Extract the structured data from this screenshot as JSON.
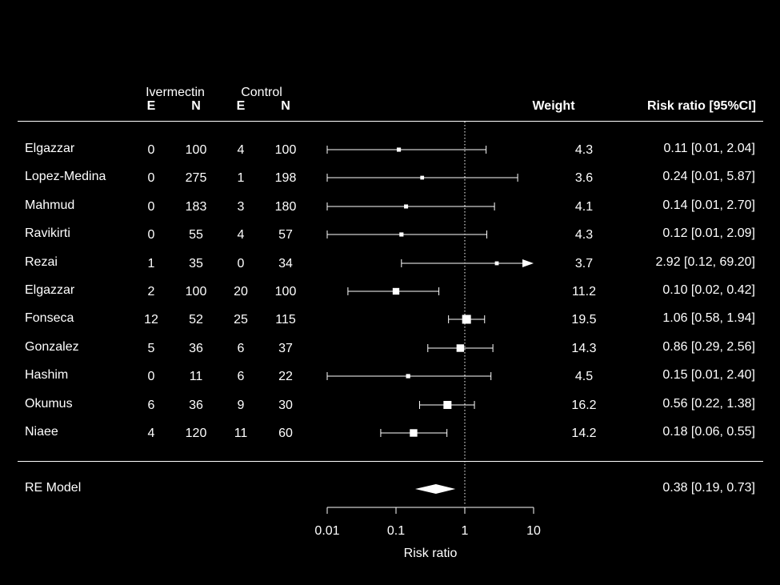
{
  "chart_data": {
    "type": "forest",
    "xlabel": "Risk ratio",
    "x_scale": "log",
    "xlim": [
      0.01,
      10
    ],
    "x_ticks": [
      "0.01",
      "0.1",
      "1",
      "10"
    ],
    "reference_line": 1,
    "group_headers": [
      "Ivermectin",
      "Control"
    ],
    "col_headers": {
      "e1": "E",
      "n1": "N",
      "e2": "E",
      "n2": "N",
      "weight": "Weight",
      "rr": "Risk ratio [95%CI]"
    },
    "studies": [
      {
        "name": "Elgazzar",
        "e1": "0",
        "n1": "100",
        "e2": "4",
        "n2": "100",
        "weight": "4.3",
        "rr": 0.11,
        "lo": 0.01,
        "hi": 2.04,
        "ci_text": "0.11 [0.01,  2.04]"
      },
      {
        "name": "Lopez-Medina",
        "e1": "0",
        "n1": "275",
        "e2": "1",
        "n2": "198",
        "weight": "3.6",
        "rr": 0.24,
        "lo": 0.01,
        "hi": 5.87,
        "ci_text": "0.24 [0.01,  5.87]"
      },
      {
        "name": "Mahmud",
        "e1": "0",
        "n1": "183",
        "e2": "3",
        "n2": "180",
        "weight": "4.1",
        "rr": 0.14,
        "lo": 0.01,
        "hi": 2.7,
        "ci_text": "0.14 [0.01,  2.70]"
      },
      {
        "name": "Ravikirti",
        "e1": "0",
        "n1": "55",
        "e2": "4",
        "n2": "57",
        "weight": "4.3",
        "rr": 0.12,
        "lo": 0.01,
        "hi": 2.09,
        "ci_text": "0.12 [0.01,  2.09]"
      },
      {
        "name": "Rezai",
        "e1": "1",
        "n1": "35",
        "e2": "0",
        "n2": "34",
        "weight": "3.7",
        "rr": 2.92,
        "lo": 0.12,
        "hi": 69.2,
        "ci_text": "2.92 [0.12, 69.20]"
      },
      {
        "name": "Elgazzar",
        "e1": "2",
        "n1": "100",
        "e2": "20",
        "n2": "100",
        "weight": "11.2",
        "rr": 0.1,
        "lo": 0.02,
        "hi": 0.42,
        "ci_text": "0.10 [0.02,  0.42]"
      },
      {
        "name": "Fonseca",
        "e1": "12",
        "n1": "52",
        "e2": "25",
        "n2": "115",
        "weight": "19.5",
        "rr": 1.06,
        "lo": 0.58,
        "hi": 1.94,
        "ci_text": "1.06 [0.58,  1.94]"
      },
      {
        "name": "Gonzalez",
        "e1": "5",
        "n1": "36",
        "e2": "6",
        "n2": "37",
        "weight": "14.3",
        "rr": 0.86,
        "lo": 0.29,
        "hi": 2.56,
        "ci_text": "0.86 [0.29,  2.56]"
      },
      {
        "name": "Hashim",
        "e1": "0",
        "n1": "11",
        "e2": "6",
        "n2": "22",
        "weight": "4.5",
        "rr": 0.15,
        "lo": 0.01,
        "hi": 2.4,
        "ci_text": "0.15 [0.01,  2.40]"
      },
      {
        "name": "Okumus",
        "e1": "6",
        "n1": "36",
        "e2": "9",
        "n2": "30",
        "weight": "16.2",
        "rr": 0.56,
        "lo": 0.22,
        "hi": 1.38,
        "ci_text": "0.56 [0.22,  1.38]"
      },
      {
        "name": "Niaee",
        "e1": "4",
        "n1": "120",
        "e2": "11",
        "n2": "60",
        "weight": "14.2",
        "rr": 0.18,
        "lo": 0.06,
        "hi": 0.55,
        "ci_text": "0.18 [0.06,  0.55]"
      }
    ],
    "summary": {
      "name": "RE Model",
      "rr": 0.38,
      "lo": 0.19,
      "hi": 0.73,
      "ci_text": "0.38 [0.19,  0.73]"
    }
  }
}
